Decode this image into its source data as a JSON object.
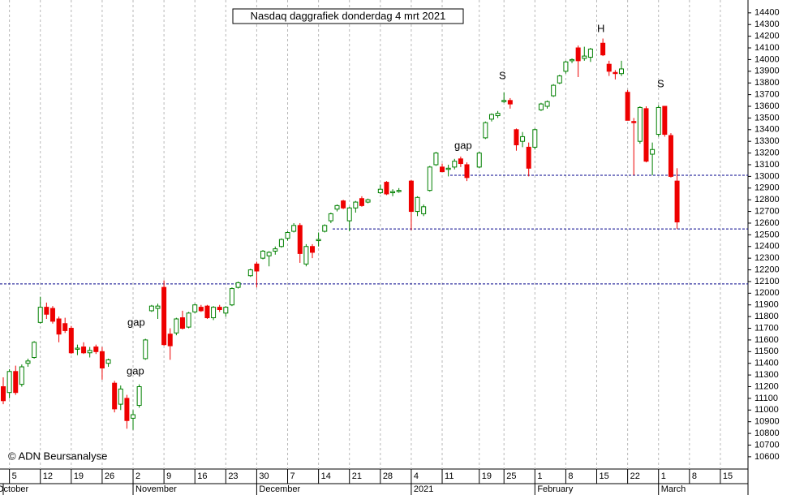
{
  "chart_data": {
    "type": "candlestick",
    "title": "Nasdaq daggrafiek donderdag 4 mrt 2021",
    "copyright": "© ADN Beursanalyse",
    "categories": [
      null,
      "5",
      null,
      null,
      null,
      null,
      "12",
      null,
      null,
      null,
      null,
      "19",
      null,
      null,
      null,
      null,
      "26",
      null,
      null,
      null,
      null,
      "2",
      null,
      null,
      null,
      null,
      "9",
      null,
      null,
      null,
      null,
      "16",
      null,
      null,
      null,
      null,
      "23",
      null,
      null,
      null,
      null,
      "30",
      null,
      null,
      null,
      null,
      "7",
      null,
      null,
      null,
      null,
      "14",
      null,
      null,
      null,
      null,
      "21",
      null,
      null,
      null,
      null,
      "28",
      null,
      null,
      null,
      null,
      "4",
      null,
      null,
      null,
      null,
      "11",
      null,
      null,
      null,
      null,
      null,
      "19",
      null,
      null,
      null,
      "25",
      null,
      null,
      null,
      null,
      "1",
      null,
      null,
      null,
      null,
      "8",
      null,
      null,
      null,
      null,
      "15",
      null,
      null,
      null,
      null,
      "22",
      null,
      null,
      null,
      null,
      "1",
      null,
      null,
      null,
      null,
      "8",
      null,
      null,
      null,
      null,
      "15",
      null,
      null,
      null,
      null
    ],
    "month_labels": [
      "October",
      null,
      null,
      null,
      null,
      null,
      null,
      null,
      null,
      null,
      null,
      null,
      null,
      null,
      null,
      null,
      null,
      null,
      null,
      null,
      null,
      "November",
      null,
      null,
      null,
      null,
      null,
      null,
      null,
      null,
      null,
      null,
      null,
      null,
      null,
      null,
      null,
      null,
      null,
      null,
      null,
      "December",
      null,
      null,
      null,
      null,
      null,
      null,
      null,
      null,
      null,
      null,
      null,
      null,
      null,
      null,
      null,
      null,
      null,
      null,
      null,
      null,
      null,
      null,
      null,
      null,
      "2021",
      null,
      null,
      null,
      null,
      null,
      null,
      null,
      null,
      null,
      null,
      null,
      null,
      null,
      null,
      null,
      null,
      null,
      null,
      null,
      "February",
      null,
      null,
      null,
      null,
      null,
      null,
      null,
      null,
      null,
      null,
      null,
      null,
      null,
      null,
      null,
      null,
      null,
      null,
      null,
      "March",
      null,
      null,
      null,
      null,
      null,
      null,
      null,
      null,
      null,
      null,
      null,
      null,
      null,
      null
    ],
    "open": [
      11200,
      11150,
      11330,
      11220,
      11400,
      11450,
      11750,
      11880,
      11870,
      11780,
      11740,
      11700,
      11520,
      11540,
      11490,
      11540,
      11500,
      11400,
      11230,
      11050,
      11100,
      10930,
      11040,
      11440,
      11850,
      11870,
      12050,
      11650,
      11660,
      11790,
      11710,
      11840,
      11880,
      11890,
      11790,
      11880,
      11830,
      11900,
      12050,
      null,
      12150,
      12250,
      12300,
      12320,
      12360,
      12400,
      12470,
      12530,
      12580,
      12250,
      12400,
      12450,
      12530,
      12620,
      12720,
      12790,
      12620,
      12730,
      12810,
      12780,
      null,
      12860,
      12950,
      12860,
      12870,
      null,
      12960,
      12700,
      12680,
      12880,
      13100,
      13080,
      13060,
      13080,
      13150,
      13100,
      null,
      13080,
      13330,
      13490,
      13520,
      13640,
      13650,
      13400,
      13300,
      13250,
      13250,
      13570,
      13600,
      13690,
      13800,
      13900,
      13990,
      14100,
      14010,
      14020,
      null,
      14140,
      13960,
      13890,
      13880,
      13720,
      13470,
      13300,
      13580,
      13190,
      13360,
      13600,
      13350,
      12960,
      null,
      null,
      null,
      null,
      null,
      null,
      null,
      null,
      null,
      null,
      null
    ],
    "high": [
      11280,
      11350,
      11380,
      11390,
      11440,
      11590,
      11970,
      11920,
      11890,
      11800,
      11790,
      11720,
      11560,
      11580,
      11540,
      11560,
      11540,
      11440,
      11250,
      11210,
      11130,
      11000,
      11220,
      11610,
      11900,
      11910,
      12110,
      11700,
      11790,
      11850,
      11840,
      11910,
      11900,
      11900,
      11890,
      11900,
      11890,
      12050,
      12100,
      null,
      12210,
      12270,
      12370,
      12360,
      12400,
      12470,
      12530,
      12600,
      12600,
      12420,
      12420,
      12520,
      12590,
      12690,
      12760,
      12800,
      12740,
      12790,
      12830,
      12810,
      null,
      12930,
      12960,
      12890,
      12900,
      null,
      12970,
      12830,
      12760,
      13090,
      13210,
      13110,
      13100,
      13150,
      13170,
      13120,
      null,
      13210,
      13470,
      13540,
      13560,
      13720,
      13670,
      13410,
      13380,
      13290,
      13410,
      13630,
      13650,
      13790,
      13870,
      13990,
      14010,
      14120,
      14110,
      14100,
      null,
      14180,
      13990,
      13910,
      13990,
      13740,
      13500,
      13600,
      13600,
      13290,
      13610,
      13600,
      13370,
      13070,
      null,
      null,
      null,
      null,
      null,
      null,
      null,
      null,
      null,
      null,
      null
    ],
    "low": [
      11050,
      11100,
      11130,
      11200,
      11370,
      11440,
      11740,
      11780,
      11740,
      11580,
      11660,
      11480,
      11470,
      11480,
      11450,
      11480,
      11260,
      11370,
      10980,
      11000,
      10840,
      10830,
      11020,
      11430,
      11840,
      11780,
      11550,
      11430,
      11640,
      11690,
      11700,
      11830,
      11840,
      11780,
      11770,
      11840,
      11800,
      11890,
      12040,
      null,
      12140,
      12050,
      12290,
      12230,
      12330,
      12390,
      12450,
      12520,
      12260,
      12230,
      12300,
      12400,
      12520,
      12600,
      12700,
      12720,
      12530,
      12690,
      12740,
      12770,
      null,
      12850,
      12840,
      12830,
      12860,
      null,
      12540,
      12660,
      12660,
      12870,
      13090,
      13040,
      13000,
      13060,
      13080,
      12960,
      null,
      13070,
      13320,
      13470,
      13500,
      13630,
      13580,
      13220,
      13250,
      13000,
      13230,
      13560,
      13580,
      13680,
      13790,
      13880,
      13970,
      13850,
      13990,
      13980,
      null,
      14030,
      13860,
      13830,
      13860,
      13480,
      13010,
      13280,
      13120,
      13010,
      13340,
      13340,
      12990,
      12550,
      null,
      null,
      null,
      null,
      null,
      null,
      null,
      null,
      null,
      null,
      null
    ],
    "close": [
      11080,
      11330,
      11150,
      11370,
      11420,
      11580,
      11880,
      11820,
      11760,
      11650,
      11680,
      11490,
      11530,
      11490,
      11510,
      11500,
      11360,
      11430,
      11010,
      11180,
      10910,
      10960,
      11200,
      11600,
      11890,
      11890,
      11560,
      11550,
      11780,
      11700,
      11830,
      11900,
      11850,
      11790,
      11880,
      11860,
      11880,
      12040,
      12090,
      null,
      12200,
      12190,
      12360,
      12350,
      12380,
      12460,
      12520,
      12580,
      12340,
      12400,
      12350,
      12460,
      12580,
      12680,
      12750,
      12730,
      12730,
      12780,
      12750,
      12800,
      null,
      12890,
      12850,
      12870,
      12880,
      null,
      12700,
      12820,
      12740,
      13080,
      13200,
      13040,
      13070,
      13130,
      13110,
      12990,
      null,
      13200,
      13460,
      13530,
      13540,
      13650,
      13620,
      13270,
      13340,
      13070,
      13400,
      13620,
      13640,
      13780,
      13860,
      13980,
      14000,
      13990,
      14030,
      14090,
      null,
      14040,
      13900,
      13880,
      13920,
      13480,
      13460,
      13590,
      13130,
      13230,
      13590,
      13360,
      13000,
      12610,
      null,
      null,
      null,
      null,
      null,
      null,
      null,
      null,
      null,
      null,
      null
    ],
    "up_color": "#008000",
    "down_color": "#ee0000",
    "ylim": [
      10495,
      14510
    ],
    "yticks": [
      10600,
      10700,
      10800,
      10900,
      11000,
      11100,
      11200,
      11300,
      11400,
      11500,
      11600,
      11700,
      11800,
      11900,
      12000,
      12100,
      12200,
      12300,
      12400,
      12500,
      12600,
      12700,
      12800,
      12900,
      13000,
      13100,
      13200,
      13300,
      13400,
      13500,
      13600,
      13700,
      13800,
      13900,
      14000,
      14100,
      14200,
      14300,
      14400
    ],
    "support_lines": {
      "values": [
        13010,
        12550,
        12080
      ],
      "color": "#00008b"
    },
    "annotations": [
      {
        "text": "gap",
        "color": "#b0b0b0"
      },
      {
        "text": "gap",
        "color": "#000000"
      },
      {
        "text": "gap",
        "color": "#b0b0b0"
      },
      {
        "text": "S",
        "color": "#1a1aa8"
      },
      {
        "text": "H",
        "color": "#1a1aa8"
      },
      {
        "text": "S",
        "color": "#1a1aa8"
      }
    ]
  }
}
